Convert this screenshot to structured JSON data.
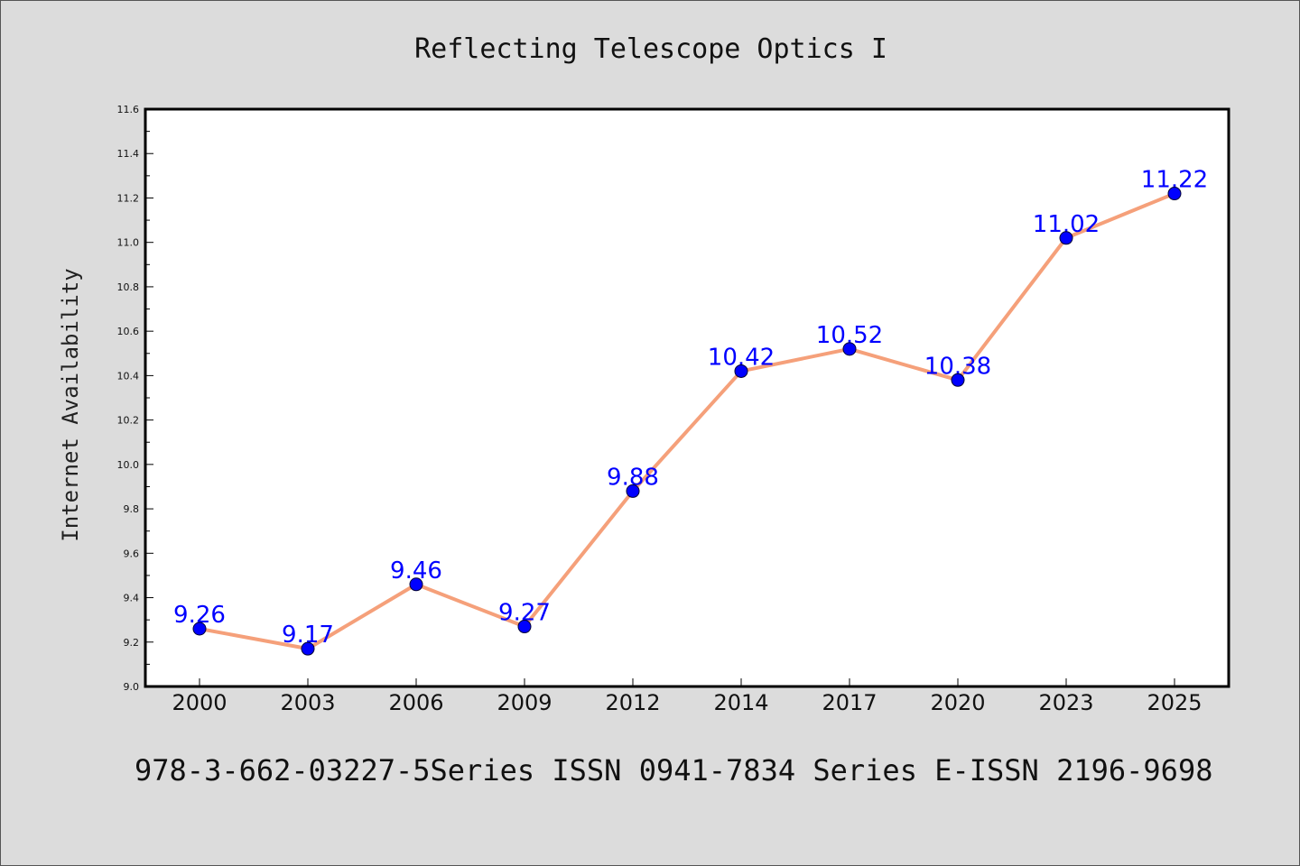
{
  "colors": {
    "background": "#dcdcdc",
    "plot_background": "#ffffff",
    "line": "#f5a07a",
    "marker": "#0000ff",
    "data_label": "#0000ff"
  },
  "footer": "978-3-662-03227-5Series ISSN 0941-7834 Series E-ISSN 2196-9698",
  "chart_data": {
    "type": "line",
    "title": "Reflecting Telescope Optics I",
    "xlabel": "",
    "ylabel": "Internet Availability",
    "categories": [
      "2000",
      "2003",
      "2006",
      "2009",
      "2012",
      "2014",
      "2017",
      "2020",
      "2023",
      "2025"
    ],
    "series": [
      {
        "values": [
          9.26,
          9.17,
          9.46,
          9.27,
          9.88,
          10.42,
          10.52,
          10.38,
          11.02,
          11.22
        ],
        "labels": [
          "9.26",
          "9.17",
          "9.46",
          "9.27",
          "9.88",
          "10.42",
          "10.52",
          "10.38",
          "11.02",
          "11.22"
        ]
      }
    ],
    "ylim": [
      9.0,
      11.6
    ],
    "yticks": [
      "9.0",
      "9.2",
      "9.4",
      "9.6",
      "9.8",
      "10.0",
      "10.2",
      "10.4",
      "10.6",
      "10.8",
      "11.0",
      "11.2",
      "11.4",
      "11.6"
    ],
    "grid": false,
    "legend": "none"
  }
}
